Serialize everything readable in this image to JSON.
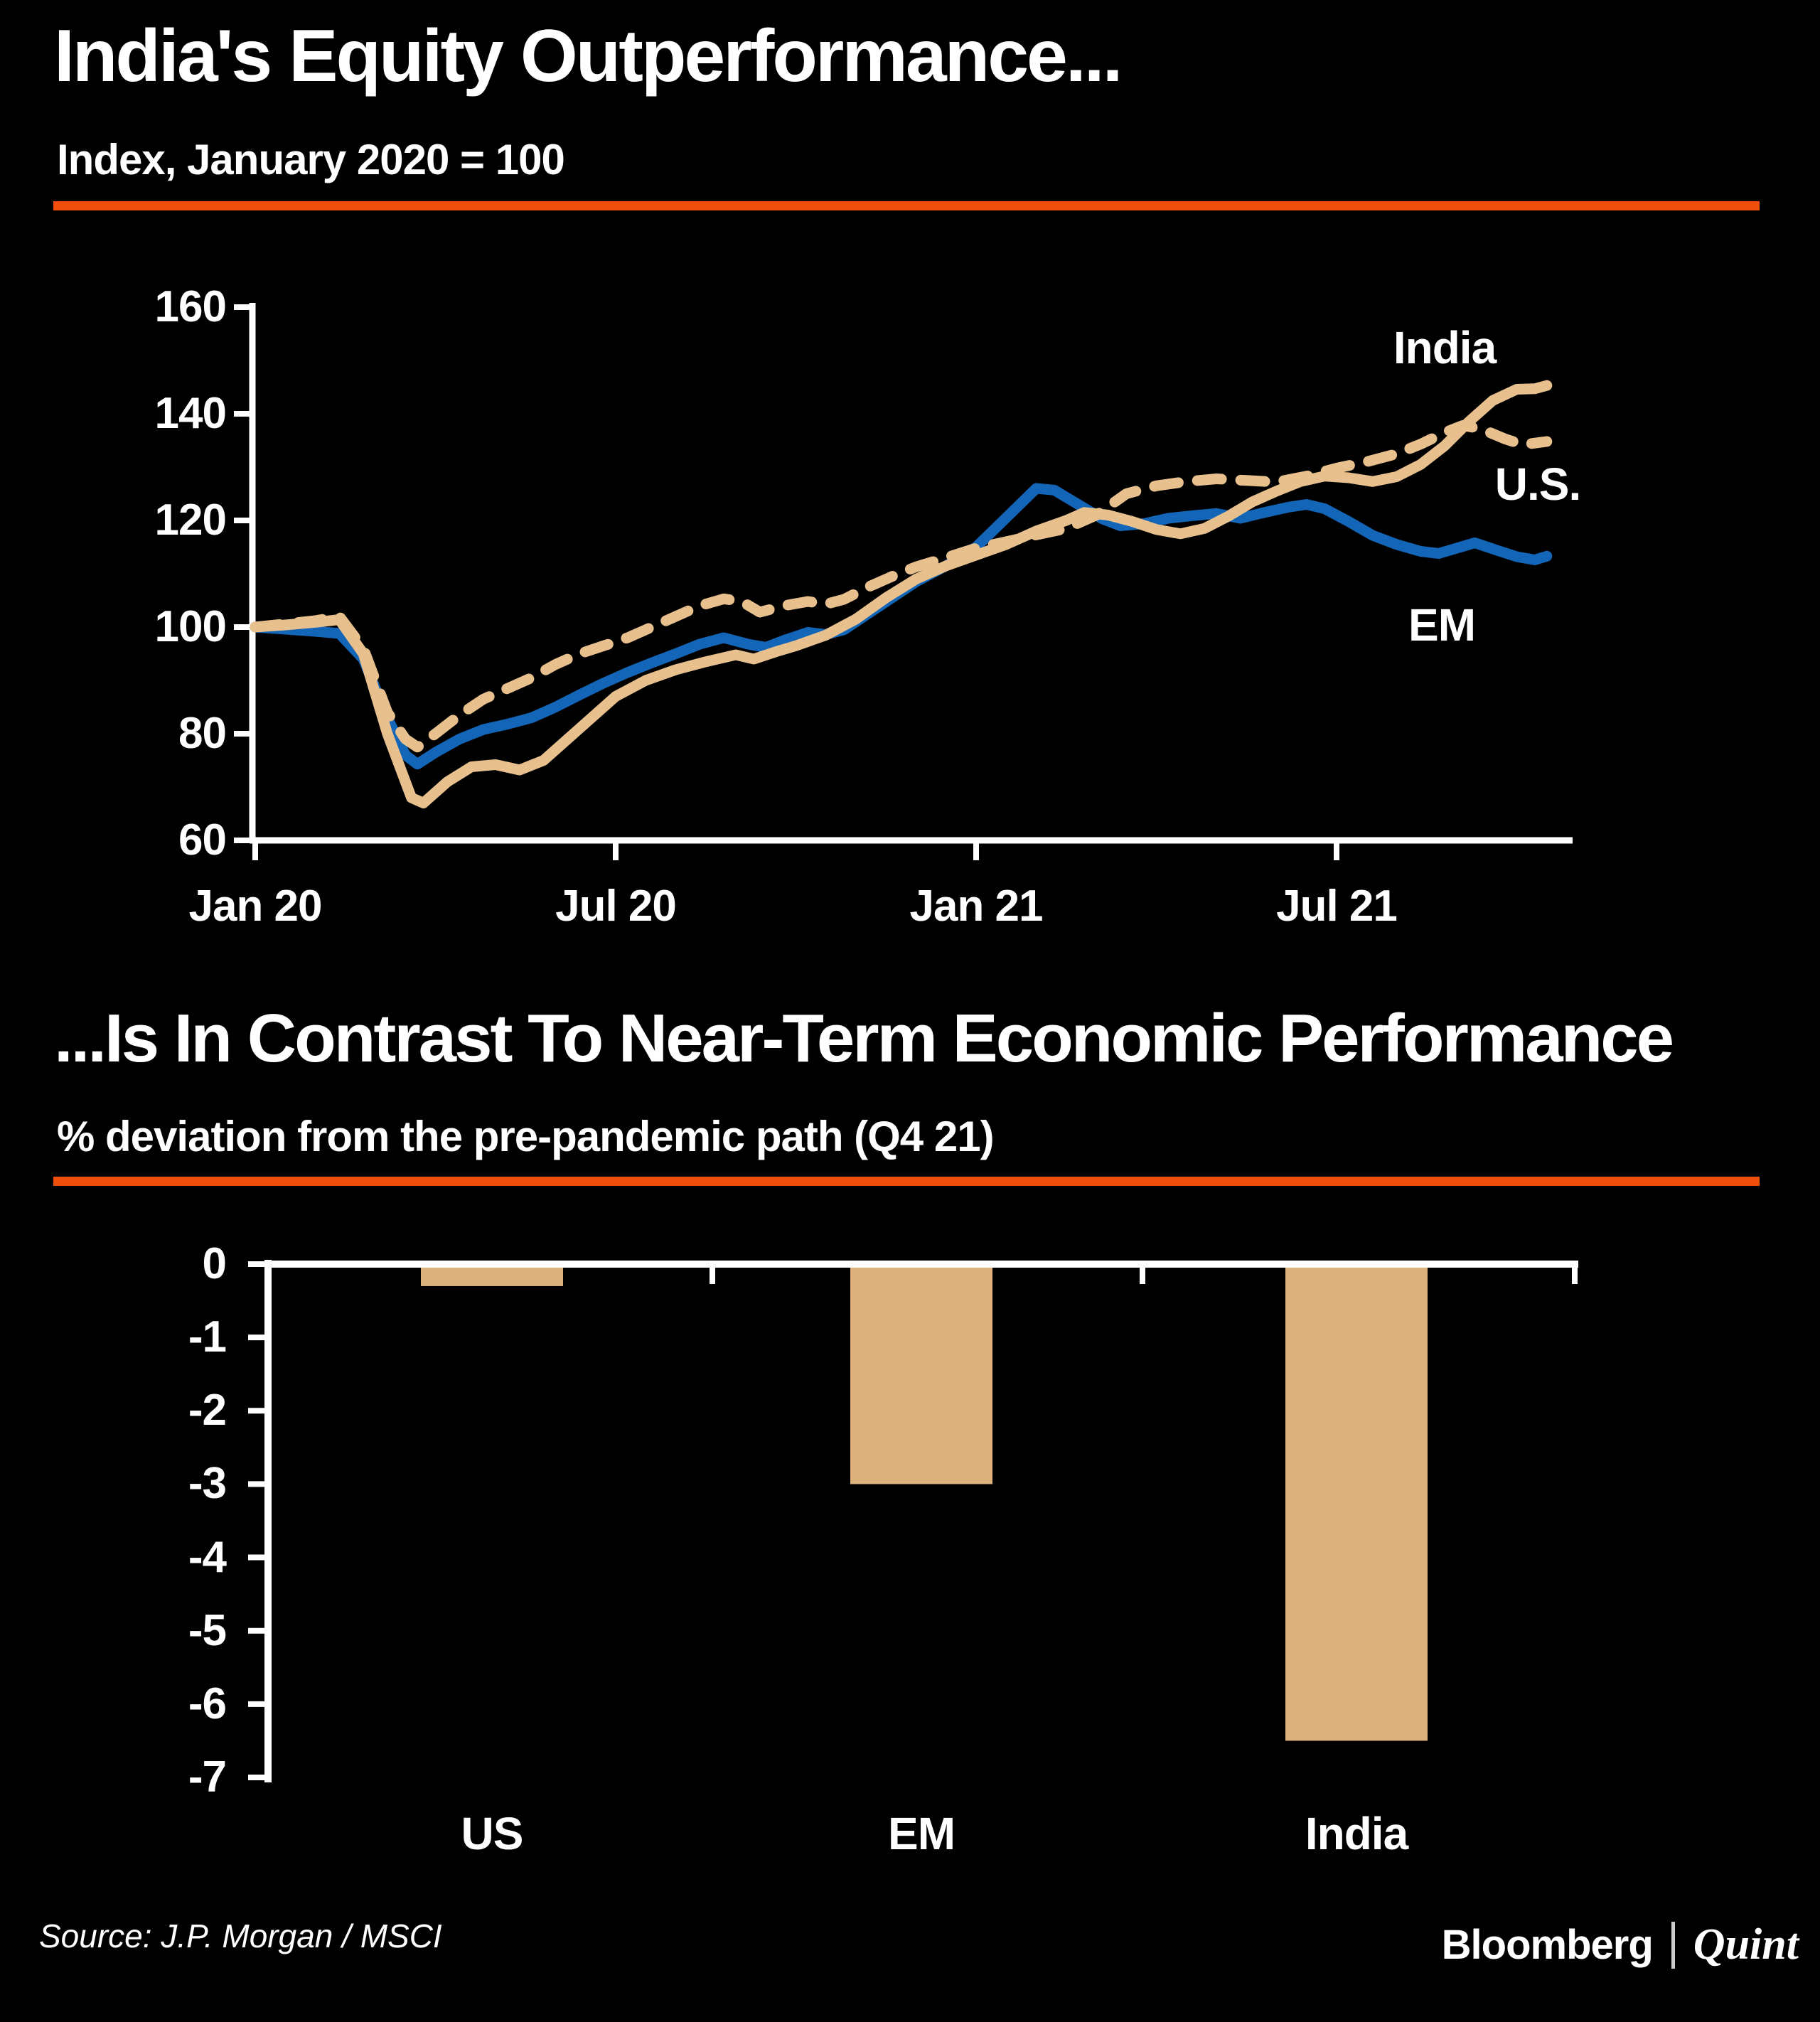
{
  "page": {
    "background_color": "#000000",
    "accent_color": "#F04E0D",
    "text_color": "#FFFFFF"
  },
  "chart_data": [
    {
      "type": "line",
      "title": "India's Equity Outperformance...",
      "subtitle": "Index, January 2020 = 100",
      "x_unit": "months since January 2020",
      "xlim": [
        0,
        22
      ],
      "ylim": [
        60,
        160
      ],
      "grid": false,
      "legend_position": "inline-right",
      "axis_color": "#FFFFFF",
      "y_ticks": [
        160,
        140,
        120,
        100,
        80,
        60
      ],
      "x_ticks": [
        {
          "m": 0,
          "label": "Jan 20"
        },
        {
          "m": 6,
          "label": "Jul 20"
        },
        {
          "m": 12,
          "label": "Jan 21"
        },
        {
          "m": 18,
          "label": "Jul 21"
        }
      ],
      "series": [
        {
          "name": "EM",
          "color": "#1365B7",
          "style": "solid",
          "points": [
            [
              0,
              100
            ],
            [
              0.5,
              99.6
            ],
            [
              1,
              99.2
            ],
            [
              1.4,
              98.8
            ],
            [
              1.8,
              94
            ],
            [
              2.2,
              83
            ],
            [
              2.5,
              76
            ],
            [
              2.7,
              74.3
            ],
            [
              3,
              76.5
            ],
            [
              3.4,
              79
            ],
            [
              3.8,
              80.8
            ],
            [
              4.2,
              81.8
            ],
            [
              4.6,
              83
            ],
            [
              5,
              85
            ],
            [
              5.4,
              87.3
            ],
            [
              5.8,
              89.5
            ],
            [
              6.2,
              91.5
            ],
            [
              6.6,
              93.3
            ],
            [
              7,
              95
            ],
            [
              7.4,
              96.8
            ],
            [
              7.8,
              98
            ],
            [
              8.2,
              96.8
            ],
            [
              8.5,
              96.2
            ],
            [
              8.8,
              97.5
            ],
            [
              9.2,
              99
            ],
            [
              9.5,
              98.6
            ],
            [
              9.8,
              99.5
            ],
            [
              10.2,
              102.5
            ],
            [
              10.6,
              105.5
            ],
            [
              11,
              108.5
            ],
            [
              11.5,
              111.5
            ],
            [
              12,
              115
            ],
            [
              12.5,
              120.5
            ],
            [
              13,
              126
            ],
            [
              13.3,
              125.7
            ],
            [
              13.7,
              123
            ],
            [
              14.1,
              120.3
            ],
            [
              14.4,
              119
            ],
            [
              14.8,
              119.4
            ],
            [
              15.2,
              120.4
            ],
            [
              15.6,
              120.9
            ],
            [
              16,
              121.3
            ],
            [
              16.4,
              120.4
            ],
            [
              16.8,
              121.5
            ],
            [
              17.2,
              122.5
            ],
            [
              17.5,
              123
            ],
            [
              17.8,
              122.2
            ],
            [
              18.2,
              119.8
            ],
            [
              18.6,
              117.2
            ],
            [
              19,
              115.5
            ],
            [
              19.4,
              114.2
            ],
            [
              19.7,
              113.8
            ],
            [
              20,
              114.8
            ],
            [
              20.3,
              115.8
            ],
            [
              20.7,
              114.3
            ],
            [
              21,
              113.2
            ],
            [
              21.3,
              112.6
            ],
            [
              21.5,
              113.3
            ]
          ]
        },
        {
          "name": "U.S.",
          "color": "#E7C08E",
          "style": "dashed",
          "points": [
            [
              0,
              100
            ],
            [
              0.5,
              100.6
            ],
            [
              1,
              101.2
            ],
            [
              1.4,
              102
            ],
            [
              1.8,
              96
            ],
            [
              2.2,
              84
            ],
            [
              2.5,
              79
            ],
            [
              2.7,
              77.5
            ],
            [
              3,
              80
            ],
            [
              3.4,
              83.5
            ],
            [
              3.8,
              86.5
            ],
            [
              4.2,
              88.5
            ],
            [
              4.6,
              90.5
            ],
            [
              5,
              93
            ],
            [
              5.4,
              95
            ],
            [
              5.8,
              96.5
            ],
            [
              6.2,
              98
            ],
            [
              6.6,
              100
            ],
            [
              7,
              102
            ],
            [
              7.4,
              104
            ],
            [
              7.8,
              105.3
            ],
            [
              8.1,
              104.8
            ],
            [
              8.4,
              102.8
            ],
            [
              8.8,
              104
            ],
            [
              9.2,
              104.8
            ],
            [
              9.5,
              104.3
            ],
            [
              9.8,
              105.2
            ],
            [
              10.2,
              107.5
            ],
            [
              10.6,
              109.5
            ],
            [
              11,
              111.3
            ],
            [
              11.5,
              113
            ],
            [
              12,
              114.8
            ],
            [
              12.5,
              116
            ],
            [
              13,
              117.3
            ],
            [
              13.5,
              118.5
            ],
            [
              14,
              121
            ],
            [
              14.5,
              125
            ],
            [
              15,
              126.5
            ],
            [
              15.5,
              127.3
            ],
            [
              16,
              127.8
            ],
            [
              16.5,
              127.5
            ],
            [
              17,
              127.2
            ],
            [
              17.5,
              128.3
            ],
            [
              18,
              129.8
            ],
            [
              18.5,
              131
            ],
            [
              19,
              132.5
            ],
            [
              19.4,
              134.3
            ],
            [
              19.8,
              136.5
            ],
            [
              20.1,
              137.8
            ],
            [
              20.4,
              137.2
            ],
            [
              20.8,
              135.3
            ],
            [
              21.1,
              134.2
            ],
            [
              21.5,
              134.8
            ]
          ]
        },
        {
          "name": "India",
          "color": "#E7C08E",
          "style": "solid",
          "points": [
            [
              0,
              100
            ],
            [
              0.5,
              100.4
            ],
            [
              1,
              100.9
            ],
            [
              1.4,
              101.4
            ],
            [
              1.8,
              95
            ],
            [
              2.2,
              80
            ],
            [
              2.6,
              68
            ],
            [
              2.8,
              67
            ],
            [
              3.2,
              71
            ],
            [
              3.6,
              73.8
            ],
            [
              4,
              74.2
            ],
            [
              4.4,
              73.2
            ],
            [
              4.8,
              75
            ],
            [
              5.2,
              79
            ],
            [
              5.6,
              83
            ],
            [
              6,
              87
            ],
            [
              6.5,
              90
            ],
            [
              7,
              92
            ],
            [
              7.5,
              93.5
            ],
            [
              8,
              94.8
            ],
            [
              8.3,
              94
            ],
            [
              8.7,
              95.5
            ],
            [
              9,
              96.5
            ],
            [
              9.5,
              98.5
            ],
            [
              10,
              101.5
            ],
            [
              10.5,
              105.5
            ],
            [
              11,
              109
            ],
            [
              11.5,
              111.5
            ],
            [
              12,
              113.5
            ],
            [
              12.5,
              115.5
            ],
            [
              13,
              118
            ],
            [
              13.5,
              120
            ],
            [
              13.8,
              121.5
            ],
            [
              14.2,
              121
            ],
            [
              14.6,
              119.8
            ],
            [
              15,
              118.3
            ],
            [
              15.4,
              117.5
            ],
            [
              15.8,
              118.5
            ],
            [
              16.2,
              120.8
            ],
            [
              16.6,
              123.5
            ],
            [
              17,
              125.5
            ],
            [
              17.4,
              127.3
            ],
            [
              17.8,
              128.3
            ],
            [
              18.2,
              128
            ],
            [
              18.6,
              127.3
            ],
            [
              19,
              128.2
            ],
            [
              19.4,
              130.5
            ],
            [
              19.8,
              134
            ],
            [
              20.2,
              138.5
            ],
            [
              20.6,
              142.5
            ],
            [
              21,
              144.6
            ],
            [
              21.3,
              144.7
            ],
            [
              21.5,
              145.3
            ]
          ]
        }
      ]
    },
    {
      "type": "bar",
      "title": "...Is In Contrast To Near-Term Economic Performance",
      "subtitle": "% deviation from the pre-pandemic path (Q4 21)",
      "categories": [
        "US",
        "EM",
        "India"
      ],
      "values": [
        -0.3,
        -3.0,
        -6.5
      ],
      "bar_color": "#DEB27C",
      "axis_color": "#FFFFFF",
      "ylim": [
        -7,
        0
      ],
      "grid": false,
      "y_ticks": [
        0,
        -1,
        -2,
        -3,
        -4,
        -5,
        -6,
        -7
      ]
    }
  ],
  "footer": {
    "source": "Source: J.P. Morgan / MSCI",
    "logo_part1": "Bloomberg",
    "logo_part2": "Quint"
  }
}
